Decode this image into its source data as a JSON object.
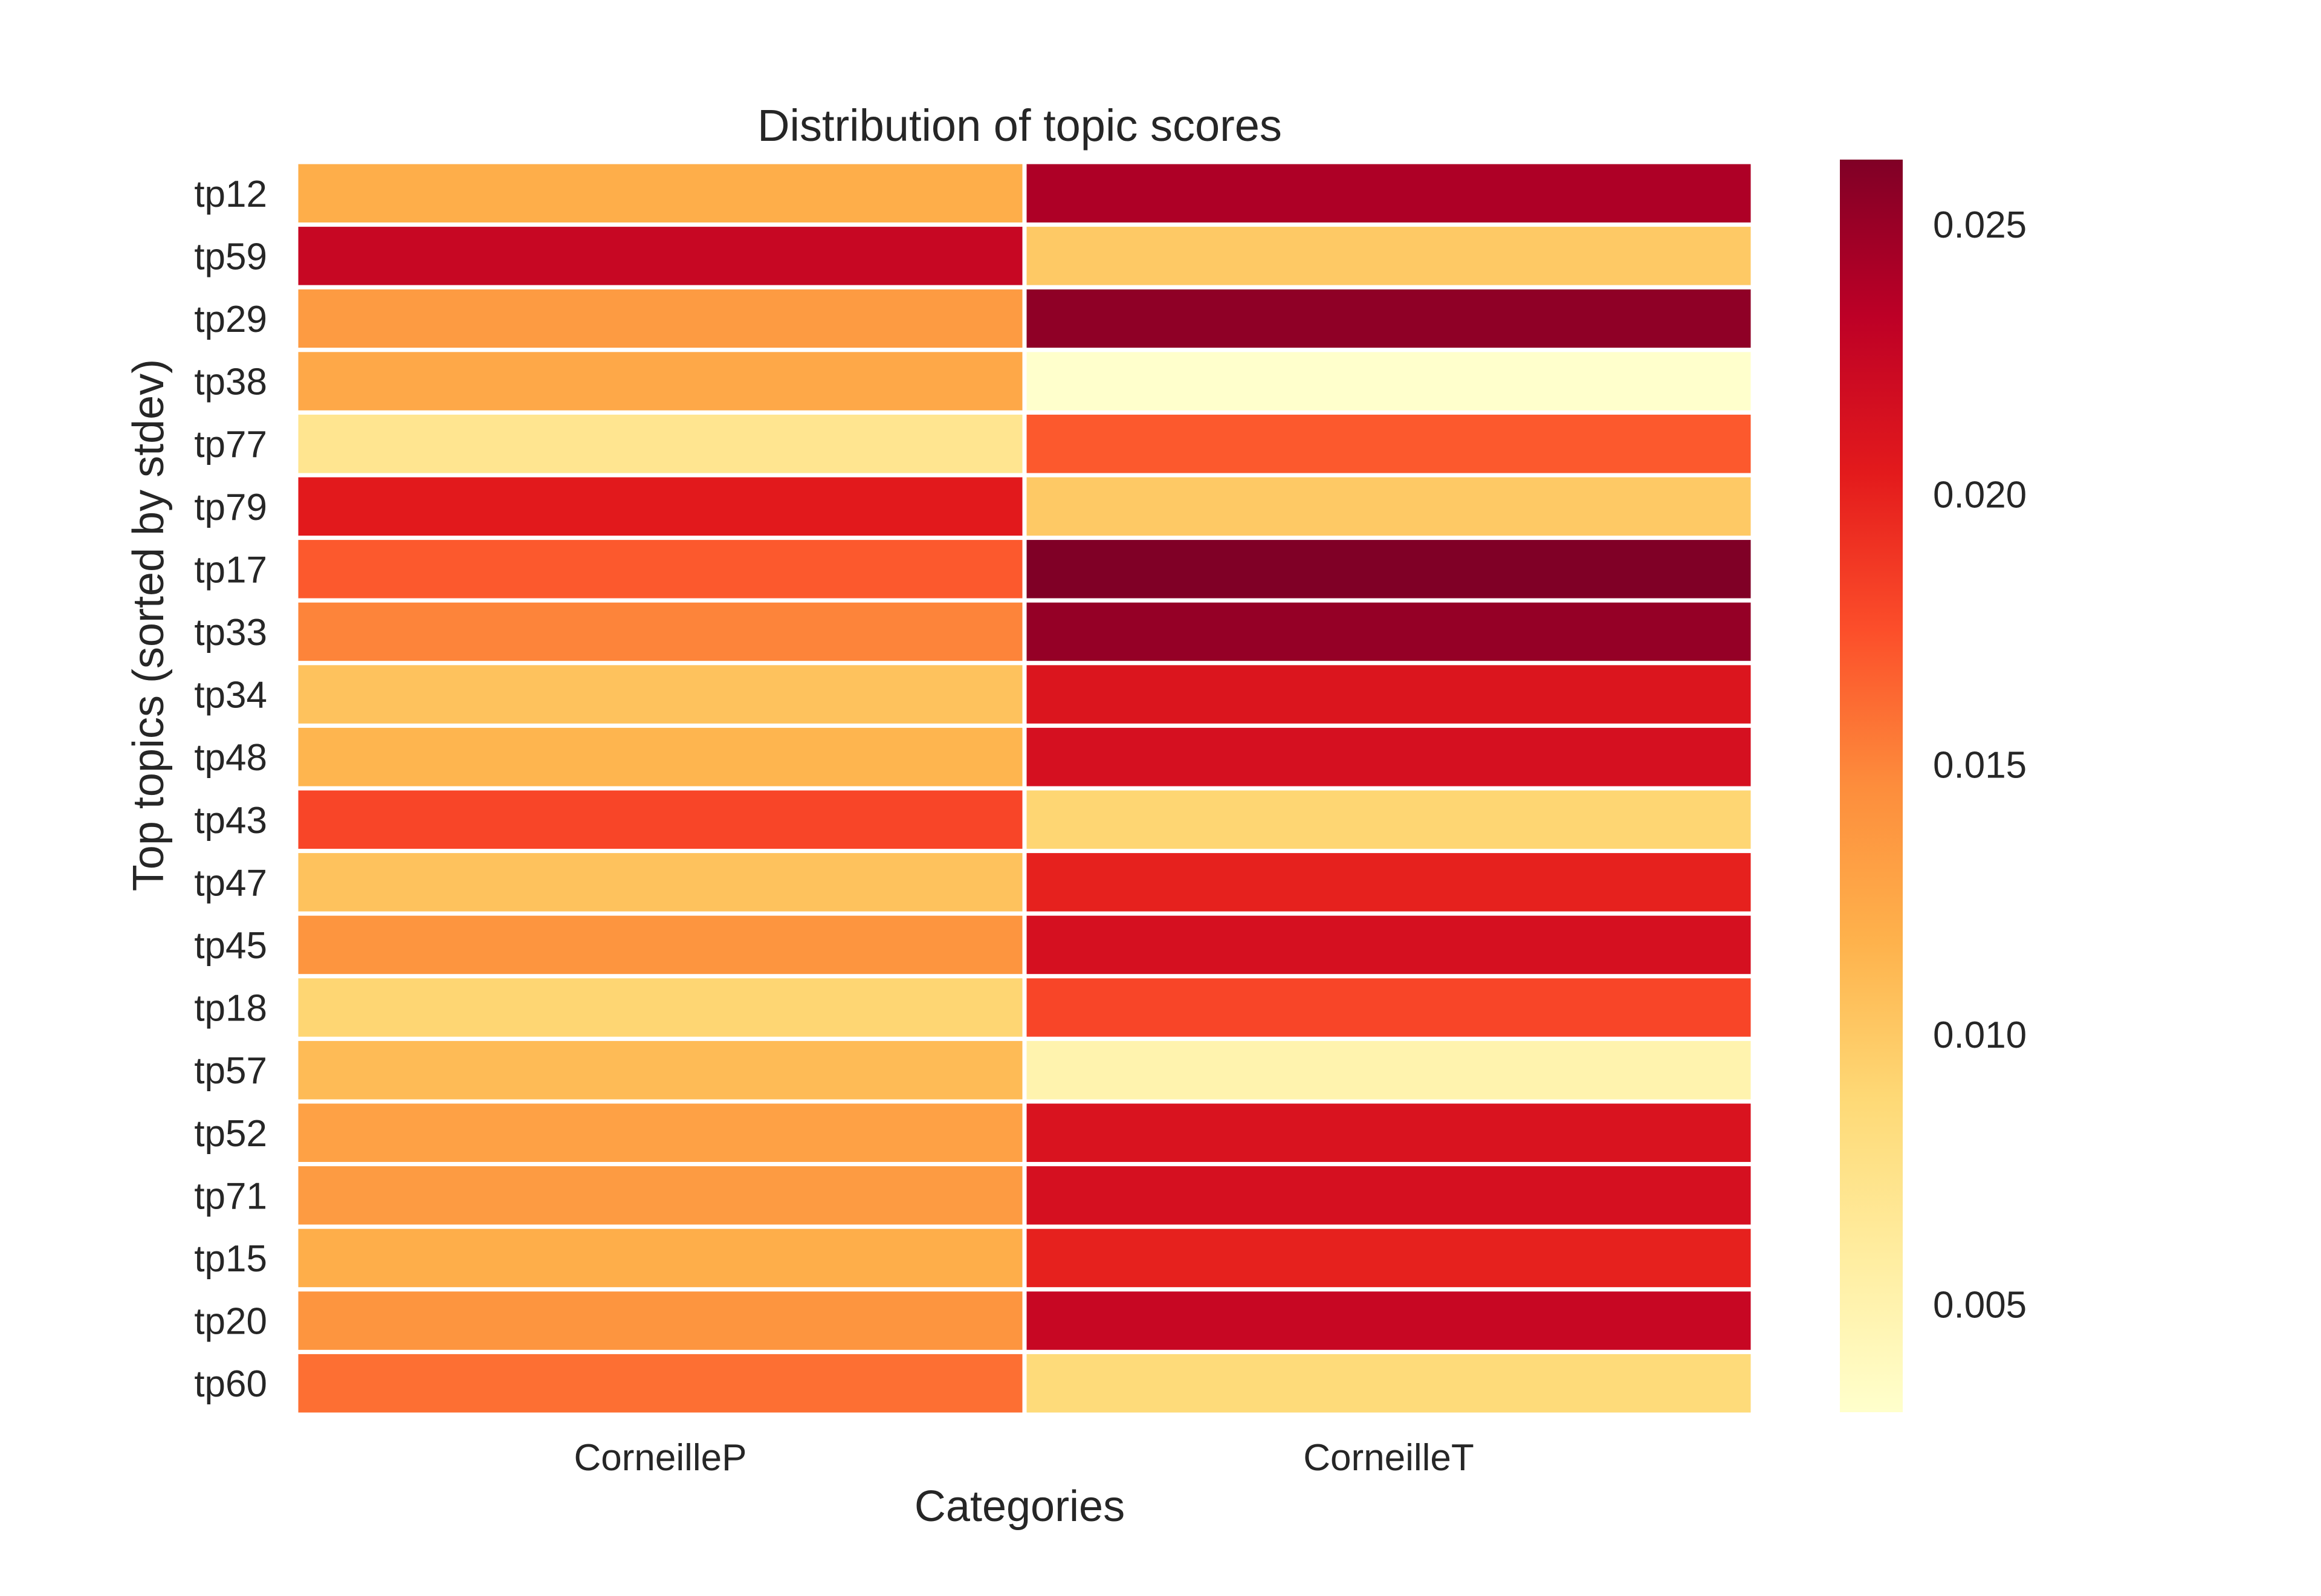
{
  "chart_data": {
    "type": "heatmap",
    "title": "Distribution of topic scores",
    "xlabel": "Categories",
    "ylabel": "Top topics (sorted by stdev)",
    "columns": [
      "CorneilleP",
      "CorneilleT"
    ],
    "rows": [
      "tp12",
      "tp59",
      "tp29",
      "tp38",
      "tp77",
      "tp79",
      "tp17",
      "tp33",
      "tp34",
      "tp48",
      "tp43",
      "tp47",
      "tp45",
      "tp18",
      "tp57",
      "tp52",
      "tp71",
      "tp15",
      "tp20",
      "tp60"
    ],
    "values": [
      [
        0.012,
        0.024
      ],
      [
        0.0225,
        0.01
      ],
      [
        0.0135,
        0.0255
      ],
      [
        0.0125,
        0.003
      ],
      [
        0.007,
        0.017
      ],
      [
        0.0205,
        0.01
      ],
      [
        0.017,
        0.0262
      ],
      [
        0.015,
        0.0252
      ],
      [
        0.0105,
        0.021
      ],
      [
        0.0115,
        0.0215
      ],
      [
        0.018,
        0.009
      ],
      [
        0.0105,
        0.02
      ],
      [
        0.014,
        0.0215
      ],
      [
        0.009,
        0.018
      ],
      [
        0.011,
        0.005
      ],
      [
        0.013,
        0.0212
      ],
      [
        0.0135,
        0.0215
      ],
      [
        0.012,
        0.02
      ],
      [
        0.014,
        0.0225
      ],
      [
        0.016,
        0.0085
      ]
    ],
    "colorbar": {
      "colormap": "YlOrRd",
      "vmin": 0.003,
      "vmax": 0.0262,
      "ticks": [
        0.005,
        0.01,
        0.015,
        0.02,
        0.025
      ],
      "tick_labels": [
        "0.005",
        "0.010",
        "0.015",
        "0.020",
        "0.025"
      ]
    },
    "grid": false,
    "legend": "colorbar-right"
  }
}
